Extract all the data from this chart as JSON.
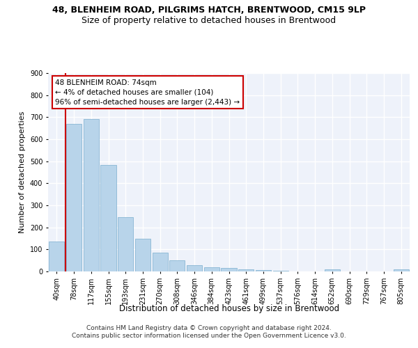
{
  "title1": "48, BLENHEIM ROAD, PILGRIMS HATCH, BRENTWOOD, CM15 9LP",
  "title2": "Size of property relative to detached houses in Brentwood",
  "xlabel": "Distribution of detached houses by size in Brentwood",
  "ylabel": "Number of detached properties",
  "categories": [
    "40sqm",
    "78sqm",
    "117sqm",
    "155sqm",
    "193sqm",
    "231sqm",
    "270sqm",
    "308sqm",
    "346sqm",
    "384sqm",
    "423sqm",
    "461sqm",
    "499sqm",
    "537sqm",
    "576sqm",
    "614sqm",
    "652sqm",
    "690sqm",
    "729sqm",
    "767sqm",
    "805sqm"
  ],
  "values": [
    135,
    668,
    693,
    483,
    247,
    148,
    84,
    52,
    27,
    19,
    15,
    8,
    5,
    3,
    0,
    0,
    9,
    0,
    0,
    0,
    9
  ],
  "bar_color": "#b8d4ea",
  "bar_edge_color": "#7aadce",
  "vline_color": "#cc0000",
  "annotation_line1": "48 BLENHEIM ROAD: 74sqm",
  "annotation_line2": "← 4% of detached houses are smaller (104)",
  "annotation_line3": "96% of semi-detached houses are larger (2,443) →",
  "annotation_box_color": "#ffffff",
  "annotation_box_edge_color": "#cc0000",
  "footer": "Contains HM Land Registry data © Crown copyright and database right 2024.\nContains public sector information licensed under the Open Government Licence v3.0.",
  "ylim": [
    0,
    900
  ],
  "background_color": "#eef2fa",
  "grid_color": "#ffffff",
  "title1_fontsize": 9,
  "title2_fontsize": 9,
  "xlabel_fontsize": 8.5,
  "ylabel_fontsize": 8,
  "tick_fontsize": 7,
  "footer_fontsize": 6.5,
  "annotation_fontsize": 7.5
}
